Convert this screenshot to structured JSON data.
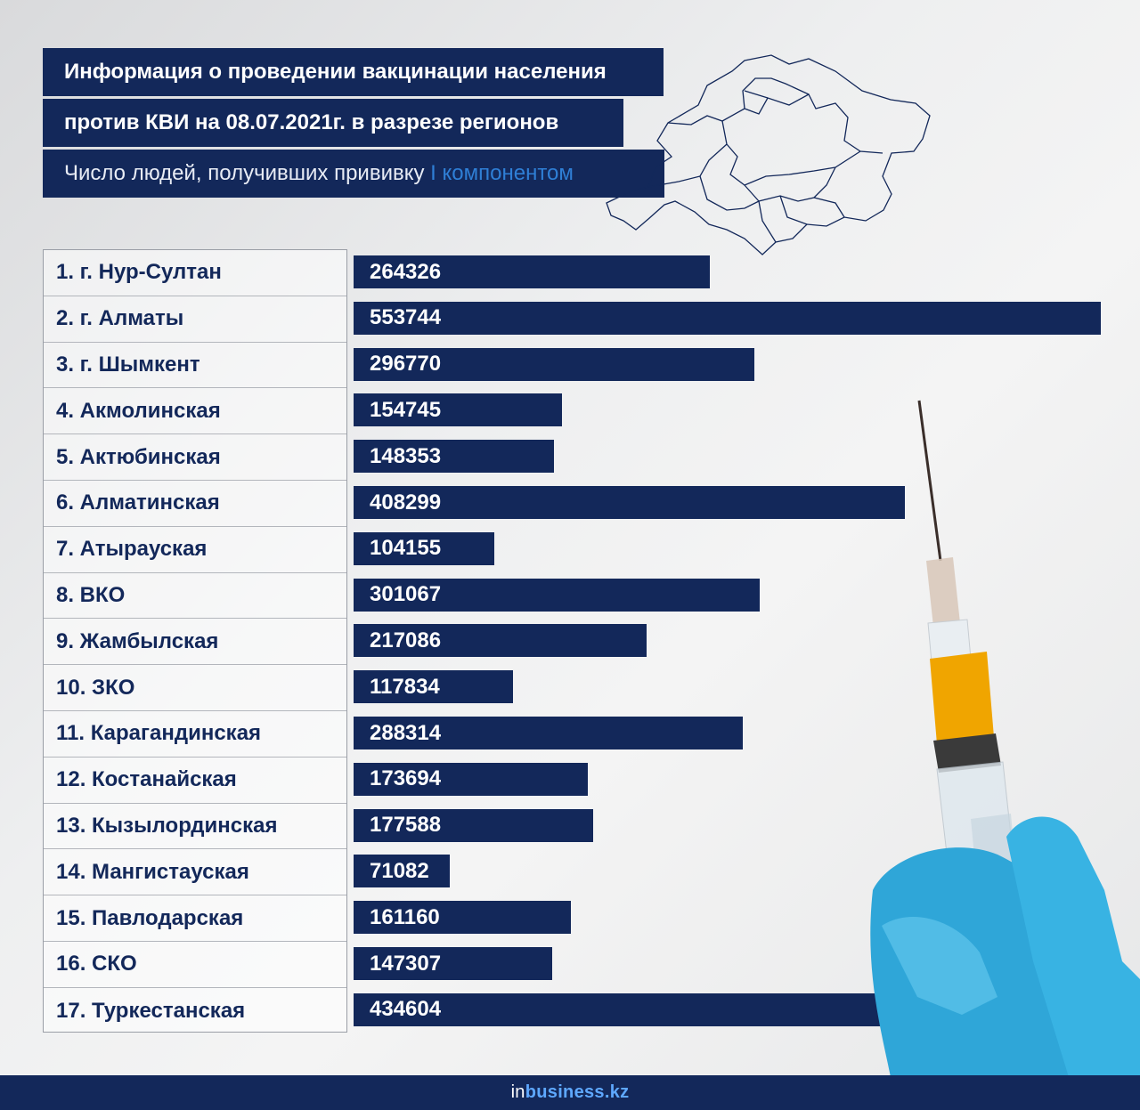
{
  "header": {
    "line1": "Информация о проведении вакцинации населения",
    "line2": "против КВИ на 08.07.2021г. в разрезе регионов",
    "line3_main": "Число людей, получивших прививку",
    "line3_accent": "I компонентом"
  },
  "brand": {
    "prefix": "in",
    "main": "business.kz"
  },
  "colors": {
    "bar": "#13285a",
    "accent": "#2f7fd6",
    "label": "#13285a"
  },
  "chart_data": {
    "type": "bar",
    "orientation": "horizontal",
    "categories": [
      "1. г. Нур-Султан",
      "2. г. Алматы",
      "3. г. Шымкент",
      "4. Акмолинская",
      "5. Актюбинская",
      "6. Алматинская",
      "7. Атырауская",
      "8. ВКО",
      "9. Жамбылская",
      "10. ЗКО",
      "11. Карагандинская",
      "12. Костанайская",
      "13. Кызылординская",
      "14. Мангистауская",
      "15. Павлодарская",
      "16. СКО",
      "17. Туркестанская"
    ],
    "values": [
      264326,
      553744,
      296770,
      154745,
      148353,
      408299,
      104155,
      301067,
      217086,
      117834,
      288314,
      173694,
      177588,
      71082,
      161160,
      147307,
      434604
    ],
    "title": "Информация о проведении вакцинации населения против КВИ на 08.07.2021г. в разрезе регионов",
    "subtitle": "Число людей, получивших прививку I компонентом",
    "xlim": [
      0,
      553744
    ],
    "grid": false,
    "legend": "none",
    "data_labels": "inside-start"
  }
}
